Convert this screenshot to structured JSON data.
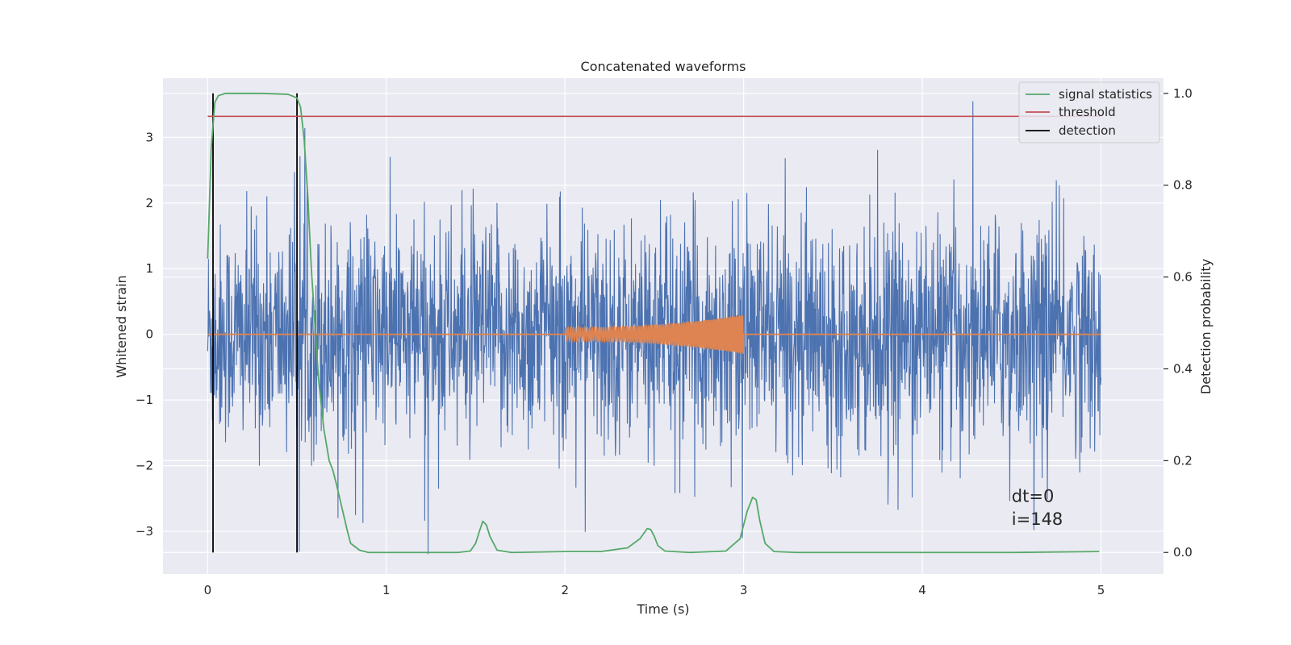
{
  "chart_data": {
    "type": "line",
    "title": "Concatenated waveforms",
    "xlabel": "Time (s)",
    "ylabel": "Whitened strain",
    "y2label": "Detection probability",
    "xlim": [
      -0.25,
      5.35
    ],
    "ylim": [
      -3.65,
      3.9
    ],
    "y2lim": [
      -0.047,
      1.033
    ],
    "x_ticks": [
      0,
      1,
      2,
      3,
      4,
      5
    ],
    "x_tick_labels": [
      "0",
      "1",
      "2",
      "3",
      "4",
      "5"
    ],
    "y_ticks": [
      -3,
      -2,
      -1,
      0,
      1,
      2,
      3
    ],
    "y_tick_labels": [
      "−3",
      "−2",
      "−1",
      "0",
      "1",
      "2",
      "3"
    ],
    "y2_ticks": [
      0.0,
      0.2,
      0.4,
      0.6,
      0.8,
      1.0
    ],
    "y2_tick_labels": [
      "0.0",
      "0.2",
      "0.4",
      "0.6",
      "0.8",
      "1.0"
    ],
    "grid": true,
    "legend_position": "top-right",
    "noise": {
      "x_range": [
        0,
        5
      ],
      "color": "#4c72b0",
      "typical_amplitude": 1.5,
      "peak_max": 3.55,
      "peak_min": -3.35
    },
    "chirp": {
      "x_range": [
        2,
        3
      ],
      "color": "#dd8452",
      "amplitude_start": 0.1,
      "amplitude_end": 0.3
    },
    "flat_line": {
      "x_range": [
        0,
        5
      ],
      "y": 0,
      "color": "#dd8452"
    },
    "series": [
      {
        "name": "signal statistics",
        "color": "#55a868",
        "axis": "right",
        "x": [
          0.0,
          0.02,
          0.04,
          0.06,
          0.1,
          0.15,
          0.3,
          0.45,
          0.5,
          0.52,
          0.54,
          0.56,
          0.58,
          0.6,
          0.62,
          0.65,
          0.68,
          0.7,
          0.72,
          0.75,
          0.78,
          0.8,
          0.85,
          0.9,
          1.0,
          1.2,
          1.4,
          1.47,
          1.5,
          1.52,
          1.54,
          1.56,
          1.58,
          1.62,
          1.7,
          2.0,
          2.2,
          2.35,
          2.42,
          2.46,
          2.48,
          2.5,
          2.52,
          2.56,
          2.7,
          2.9,
          2.98,
          3.02,
          3.05,
          3.07,
          3.09,
          3.12,
          3.17,
          3.3,
          4.0,
          4.5,
          4.99
        ],
        "y": [
          0.64,
          0.88,
          0.98,
          0.995,
          1.0,
          1.0,
          1.0,
          0.998,
          0.99,
          0.97,
          0.9,
          0.78,
          0.62,
          0.5,
          0.38,
          0.27,
          0.2,
          0.18,
          0.15,
          0.1,
          0.05,
          0.02,
          0.005,
          0.0,
          0.0,
          0.0,
          0.0,
          0.003,
          0.02,
          0.045,
          0.068,
          0.06,
          0.035,
          0.005,
          0.0,
          0.002,
          0.002,
          0.01,
          0.03,
          0.052,
          0.05,
          0.035,
          0.015,
          0.003,
          0.0,
          0.003,
          0.03,
          0.09,
          0.12,
          0.115,
          0.07,
          0.02,
          0.002,
          0.0,
          0.0,
          0.0,
          0.002
        ]
      },
      {
        "name": "threshold",
        "color": "#c44e52",
        "axis": "right",
        "x": [
          0.0,
          5.0
        ],
        "y": [
          0.95,
          0.95
        ]
      },
      {
        "name": "detection",
        "color": "#000000",
        "axis": "right",
        "vlines": [
          0.03,
          0.5
        ],
        "y_range": [
          0.0,
          1.0
        ]
      }
    ],
    "annotations": [
      {
        "text": "dt=0",
        "x": 4.5,
        "y": -2.55
      },
      {
        "text": "i=148",
        "x": 4.5,
        "y": -2.9
      }
    ]
  }
}
